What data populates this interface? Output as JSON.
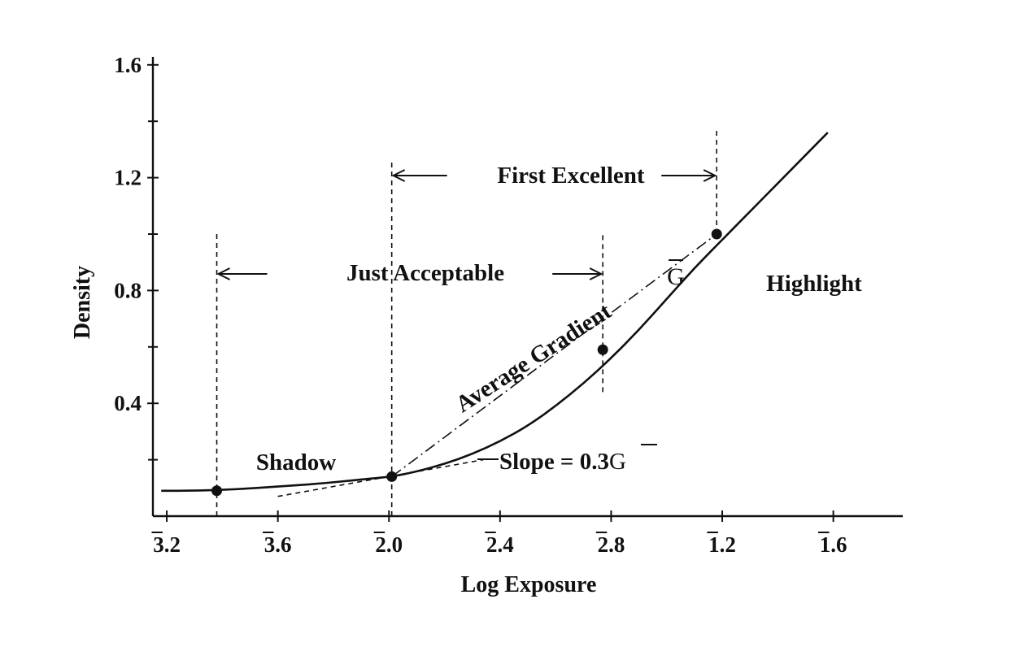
{
  "chart_data": {
    "type": "line",
    "xlabel": "Log Exposure",
    "ylabel": "Density",
    "x_ticks": [
      {
        "bar": "3",
        "rest": ".2",
        "value": -2.8
      },
      {
        "bar": "3",
        "rest": ".6",
        "value": -2.4
      },
      {
        "bar": "2",
        "rest": ".0",
        "value": -2.0
      },
      {
        "bar": "2",
        "rest": ".4",
        "value": -1.6
      },
      {
        "bar": "2",
        "rest": ".8",
        "value": -1.2
      },
      {
        "bar": "1",
        "rest": ".2",
        "value": -0.8
      },
      {
        "bar": "1",
        "rest": ".6",
        "value": -0.4
      }
    ],
    "y_ticks": [
      {
        "label": "1.6",
        "value": 1.6
      },
      {
        "label": "1.2",
        "value": 1.2
      },
      {
        "label": "0.8",
        "value": 0.8
      },
      {
        "label": "0.4",
        "value": 0.4
      }
    ],
    "y_minor_ticks": [
      0.2,
      0.6,
      1.0,
      1.4
    ],
    "xlim": [
      -2.85,
      -0.15
    ],
    "ylim": [
      0.0,
      1.7
    ],
    "series": [
      {
        "x": [
          -2.82,
          -2.7,
          -2.55,
          -2.4,
          -2.25,
          -2.1,
          -1.99,
          -1.9,
          -1.8,
          -1.7,
          -1.6,
          -1.5,
          -1.4,
          -1.3,
          -1.2,
          -1.1,
          -1.0,
          -0.9,
          -0.8,
          -0.7,
          -0.6,
          -0.5,
          -0.42
        ],
        "y": [
          0.09,
          0.09,
          0.095,
          0.105,
          0.115,
          0.13,
          0.14,
          0.158,
          0.185,
          0.22,
          0.265,
          0.32,
          0.39,
          0.47,
          0.56,
          0.66,
          0.77,
          0.88,
          0.98,
          1.08,
          1.18,
          1.28,
          1.36
        ]
      }
    ],
    "points": [
      {
        "x": -2.62,
        "y": 0.09
      },
      {
        "x": -1.99,
        "y": 0.14
      },
      {
        "x": -1.23,
        "y": 0.59
      },
      {
        "x": -0.82,
        "y": 1.0
      }
    ],
    "verticals": [
      {
        "x": -2.62,
        "y_from": 0.0,
        "y_to": 1.0
      },
      {
        "x": -1.99,
        "y_from": 0.0,
        "y_to": 1.26
      },
      {
        "x": -1.23,
        "y_from": 0.44,
        "y_to": 1.0
      },
      {
        "x": -0.82,
        "y_from": 1.0,
        "y_to": 1.37
      }
    ],
    "average_gradient_line": {
      "x0": -1.99,
      "y0": 0.14,
      "x1": -0.82,
      "y1": 1.0
    },
    "slope_line": {
      "x0": -2.4,
      "y0": 0.07,
      "x1": -1.66,
      "y1": 0.2
    },
    "annotations": {
      "first_excellent": "First Excellent",
      "just_acceptable": "Just Acceptable",
      "average_gradient": "Average Gradient",
      "g_bar": "G",
      "highlight": "Highlight",
      "shadow": "Shadow",
      "slope_prefix": "Slope = 0.3",
      "slope_g": "G"
    }
  }
}
